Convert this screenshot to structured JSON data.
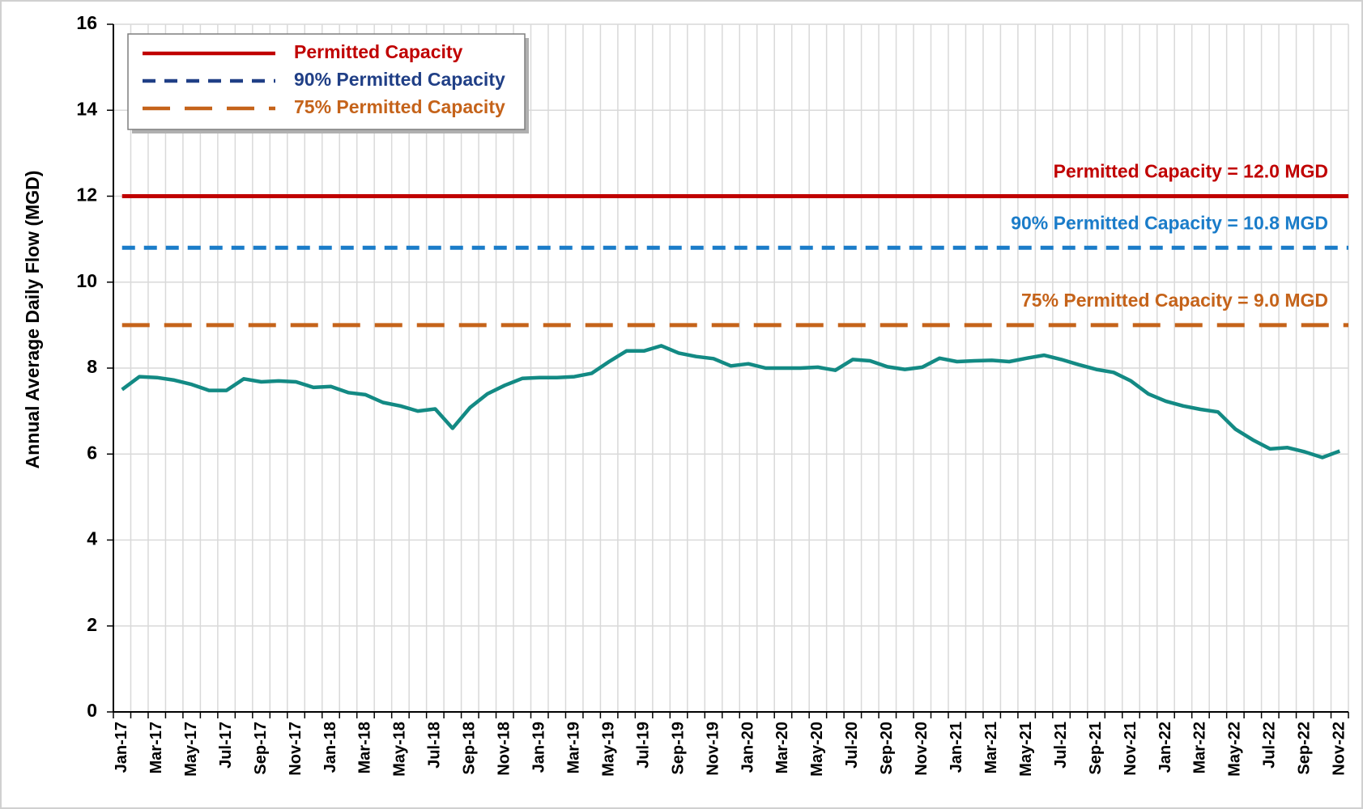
{
  "chart_data": {
    "type": "line",
    "y_label": "Annual Average Daily Flow (MGD)",
    "categories": [
      "Jan-17",
      null,
      "Mar-17",
      null,
      "May-17",
      null,
      "Jul-17",
      null,
      "Sep-17",
      null,
      "Nov-17",
      null,
      "Jan-18",
      null,
      "Mar-18",
      null,
      "May-18",
      null,
      "Jul-18",
      null,
      "Sep-18",
      null,
      "Nov-18",
      null,
      "Jan-19",
      null,
      "Mar-19",
      null,
      "May-19",
      null,
      "Jul-19",
      null,
      "Sep-19",
      null,
      "Nov-19",
      null,
      "Jan-20",
      null,
      "Mar-20",
      null,
      "May-20",
      null,
      "Jul-20",
      null,
      "Sep-20",
      null,
      "Nov-20",
      null,
      "Jan-21",
      null,
      "Mar-21",
      null,
      "May-21",
      null,
      "Jul-21",
      null,
      "Sep-21",
      null,
      "Nov-21",
      null,
      "Jan-22",
      null,
      "Mar-22",
      null,
      "May-22",
      null,
      "Jul-22",
      null,
      "Sep-22",
      null,
      "Nov-22"
    ],
    "series": [
      {
        "color": "#138a84",
        "values": [
          7.5,
          7.8,
          7.78,
          7.72,
          7.62,
          7.48,
          7.48,
          7.75,
          7.68,
          7.7,
          7.68,
          7.55,
          7.57,
          7.43,
          7.38,
          7.2,
          7.12,
          7.0,
          7.05,
          6.6,
          7.08,
          7.4,
          7.6,
          7.76,
          7.78,
          7.78,
          7.8,
          7.88,
          8.15,
          8.4,
          8.4,
          8.52,
          8.35,
          8.27,
          8.22,
          8.05,
          8.1,
          8.0,
          8.0,
          8.0,
          8.02,
          7.95,
          8.2,
          8.17,
          8.03,
          7.97,
          8.02,
          8.23,
          8.15,
          8.17,
          8.18,
          8.15,
          8.23,
          8.3,
          8.2,
          8.08,
          7.97,
          7.9,
          7.7,
          7.4,
          7.23,
          7.12,
          7.04,
          6.98,
          6.58,
          6.33,
          6.12,
          6.15,
          6.05,
          5.92,
          6.07
        ]
      }
    ],
    "reference_lines": [
      {
        "name": "Permitted Capacity",
        "value": 12,
        "label": "Permitted Capacity = 12.0 MGD",
        "color": "#c00000",
        "legend_color": "#c00000",
        "dash": "solid"
      },
      {
        "name": "90% Permitted Capacity",
        "value": 10.8,
        "label": "90% Permitted Capacity = 10.8 MGD",
        "color": "#1a7cc9",
        "legend_color": "#203f86",
        "dash": "short"
      },
      {
        "name": "75% Permitted Capacity",
        "value": 9,
        "label": "75% Permitted Capacity = 9.0 MGD",
        "color": "#c5631a",
        "legend_color": "#c5631a",
        "dash": "long"
      }
    ],
    "ylim": [
      0,
      16
    ],
    "yticks": [
      0,
      2,
      4,
      6,
      8,
      10,
      12,
      14,
      16
    ],
    "grid": true,
    "legend": "top-left"
  }
}
